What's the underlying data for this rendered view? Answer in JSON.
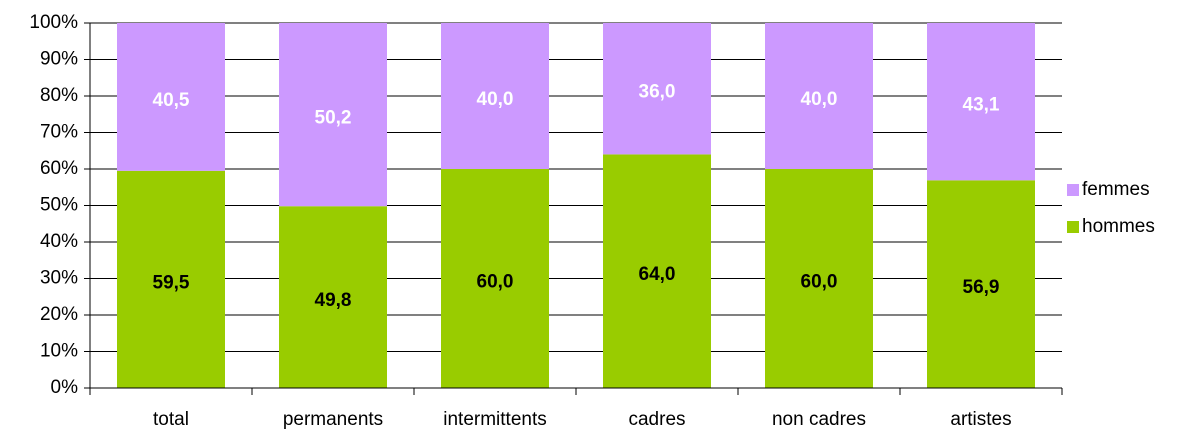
{
  "chart_data": {
    "type": "stacked_bar",
    "categories": [
      "total",
      "permanents",
      "intermittents",
      "cadres",
      "non cadres",
      "artistes"
    ],
    "series": [
      {
        "name": "hommes",
        "color": "#99cc00",
        "label_color": "#000000",
        "values": [
          59.5,
          49.8,
          60.0,
          64.0,
          60.0,
          56.9
        ],
        "value_labels": [
          "59,5",
          "49,8",
          "60,0",
          "64,0",
          "60,0",
          "56,9"
        ]
      },
      {
        "name": "femmes",
        "color": "#cc99ff",
        "label_color": "#ffffff",
        "values": [
          40.5,
          50.2,
          40.0,
          36.0,
          40.0,
          43.1
        ],
        "value_labels": [
          "40,5",
          "50,2",
          "40,0",
          "36,0",
          "40,0",
          "43,1"
        ]
      }
    ],
    "ylim": [
      0,
      100
    ],
    "yticks": [
      {
        "value": 0,
        "label": "0%"
      },
      {
        "value": 10,
        "label": "10%"
      },
      {
        "value": 20,
        "label": "20%"
      },
      {
        "value": 30,
        "label": "30%"
      },
      {
        "value": 40,
        "label": "40%"
      },
      {
        "value": 50,
        "label": "50%"
      },
      {
        "value": 60,
        "label": "60%"
      },
      {
        "value": 70,
        "label": "70%"
      },
      {
        "value": 80,
        "label": "80%"
      },
      {
        "value": 90,
        "label": "90%"
      },
      {
        "value": 100,
        "label": "100%"
      }
    ],
    "grid": true,
    "legend": "right"
  }
}
